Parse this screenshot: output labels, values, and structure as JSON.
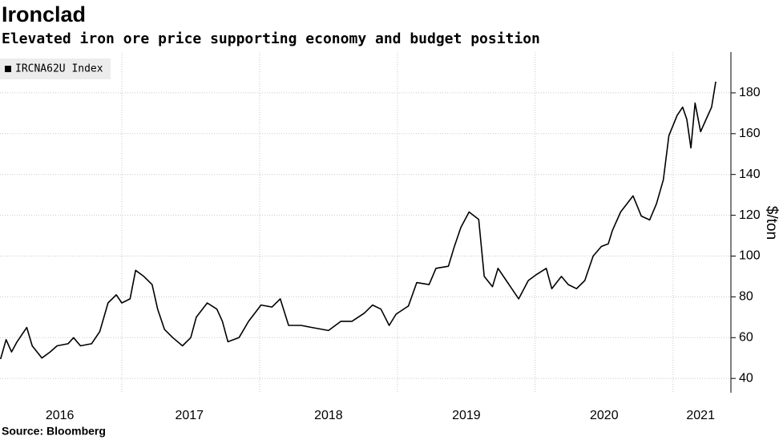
{
  "chart_data": {
    "type": "line",
    "title": "Ironclad",
    "subtitle": "Elevated iron ore price supporting economy and budget position",
    "source": "Source: Bloomberg",
    "y_label": "$/ton",
    "legend": "top-left",
    "grid": true,
    "xlim": [
      2016.116,
      2021.42
    ],
    "xticks": [
      {
        "value": 2016.55,
        "label": "2016"
      },
      {
        "value": 2017.49,
        "label": "2017"
      },
      {
        "value": 2018.5,
        "label": "2018"
      },
      {
        "value": 2019.5,
        "label": "2019"
      },
      {
        "value": 2020.5,
        "label": "2020"
      },
      {
        "value": 2021.2,
        "label": "2021"
      }
    ],
    "xgrid": [
      2017,
      2018,
      2019,
      2020,
      2021
    ],
    "ylim": [
      33,
      200
    ],
    "yticks": [
      40,
      60,
      80,
      100,
      120,
      140,
      160,
      180
    ],
    "x": [
      2016.12,
      2016.16,
      2016.2,
      2016.24,
      2016.31,
      2016.35,
      2016.42,
      2016.48,
      2016.53,
      2016.61,
      2016.65,
      2016.7,
      2016.78,
      2016.84,
      2016.9,
      2016.96,
      2017.0,
      2017.06,
      2017.1,
      2017.16,
      2017.22,
      2017.26,
      2017.31,
      2017.37,
      2017.44,
      2017.5,
      2017.54,
      2017.62,
      2017.69,
      2017.73,
      2017.77,
      2017.85,
      2017.92,
      2018.01,
      2018.09,
      2018.15,
      2018.21,
      2018.3,
      2018.38,
      2018.5,
      2018.59,
      2018.67,
      2018.76,
      2018.82,
      2018.88,
      2018.94,
      2018.99,
      2019.08,
      2019.14,
      2019.23,
      2019.28,
      2019.37,
      2019.41,
      2019.46,
      2019.52,
      2019.59,
      2019.63,
      2019.69,
      2019.73,
      2019.79,
      2019.88,
      2019.95,
      2020.01,
      2020.08,
      2020.12,
      2020.19,
      2020.24,
      2020.3,
      2020.36,
      2020.42,
      2020.48,
      2020.53,
      2020.56,
      2020.62,
      2020.71,
      2020.77,
      2020.83,
      2020.88,
      2020.93,
      2020.97,
      2021.03,
      2021.07,
      2021.1,
      2021.13,
      2021.16,
      2021.2,
      2021.24,
      2021.28,
      2021.31
    ],
    "series": [
      {
        "name": "IRCNA62U Index",
        "color": "#000000",
        "values": [
          49.5,
          59,
          53,
          58,
          65,
          56,
          50,
          53,
          56,
          57,
          60,
          56,
          57,
          63,
          77,
          81,
          77,
          79,
          93,
          90,
          86,
          74,
          64,
          60,
          56,
          60,
          70,
          77,
          74,
          68,
          58,
          60,
          68,
          76,
          75,
          79,
          66,
          66,
          65,
          63.5,
          68,
          68,
          72,
          76,
          74,
          66,
          71.5,
          75.5,
          87,
          86,
          94,
          95,
          104,
          114,
          121.6,
          118,
          90,
          85,
          94,
          88,
          79,
          88,
          91,
          94,
          84,
          90,
          86,
          84,
          88,
          100,
          104.7,
          106,
          112.5,
          121.6,
          129.5,
          119.6,
          117.7,
          125.6,
          137.4,
          159,
          169,
          173,
          167,
          153,
          175,
          161,
          167,
          173,
          185.5
        ]
      }
    ]
  }
}
